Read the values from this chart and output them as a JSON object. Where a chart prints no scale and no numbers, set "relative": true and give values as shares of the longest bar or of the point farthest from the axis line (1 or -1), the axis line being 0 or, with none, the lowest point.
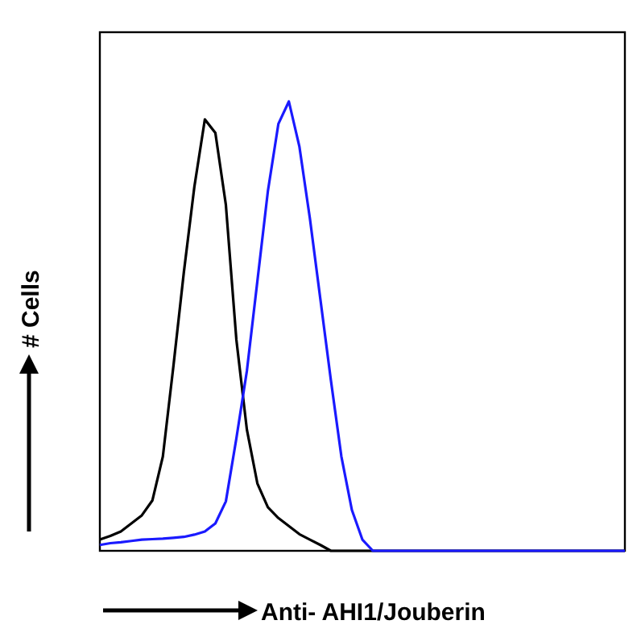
{
  "chart_data": {
    "type": "line",
    "relative": true,
    "xlabel": "Anti- AHI1/Jouberin",
    "ylabel": "# Cells",
    "categories": [
      null,
      null,
      null,
      null,
      null,
      null,
      null,
      null,
      null,
      null,
      null,
      null,
      null,
      null,
      null,
      null,
      null,
      null,
      null,
      null,
      null,
      null,
      null,
      null,
      null,
      null,
      null,
      null,
      null,
      null,
      null,
      null,
      null,
      null,
      null,
      null,
      null,
      null,
      null,
      null,
      null,
      null,
      null,
      null,
      null,
      null,
      null,
      null,
      null,
      null,
      null
    ],
    "marker": "none",
    "line_style": "solid",
    "grid": false,
    "series": [
      {
        "color": "#000000",
        "values": [
          0.025,
          0.033,
          0.043,
          0.061,
          0.079,
          0.112,
          0.21,
          0.41,
          0.62,
          0.81,
          0.96,
          0.93,
          0.77,
          0.47,
          0.27,
          0.15,
          0.097,
          0.073,
          0.055,
          0.037,
          0.025,
          0.013,
          0,
          0,
          0,
          0,
          0,
          0,
          0,
          0,
          0,
          0,
          0,
          0,
          0,
          0,
          0,
          0,
          0,
          0,
          0,
          0,
          0,
          0,
          0,
          0,
          0,
          0,
          0,
          0,
          0
        ]
      },
      {
        "color": "#1a1aff",
        "values": [
          0.013,
          0.017,
          0.019,
          0.022,
          0.025,
          0.026,
          0.027,
          0.029,
          0.031,
          0.036,
          0.043,
          0.061,
          0.11,
          0.25,
          0.4,
          0.6,
          0.8,
          0.95,
          1,
          0.9,
          0.74,
          0.56,
          0.38,
          0.21,
          0.091,
          0.025,
          0,
          0,
          0,
          0,
          0,
          0,
          0,
          0,
          0,
          0,
          0,
          0,
          0,
          0,
          0,
          0,
          0,
          0,
          0,
          0,
          0,
          0,
          0,
          0,
          0
        ]
      }
    ]
  }
}
